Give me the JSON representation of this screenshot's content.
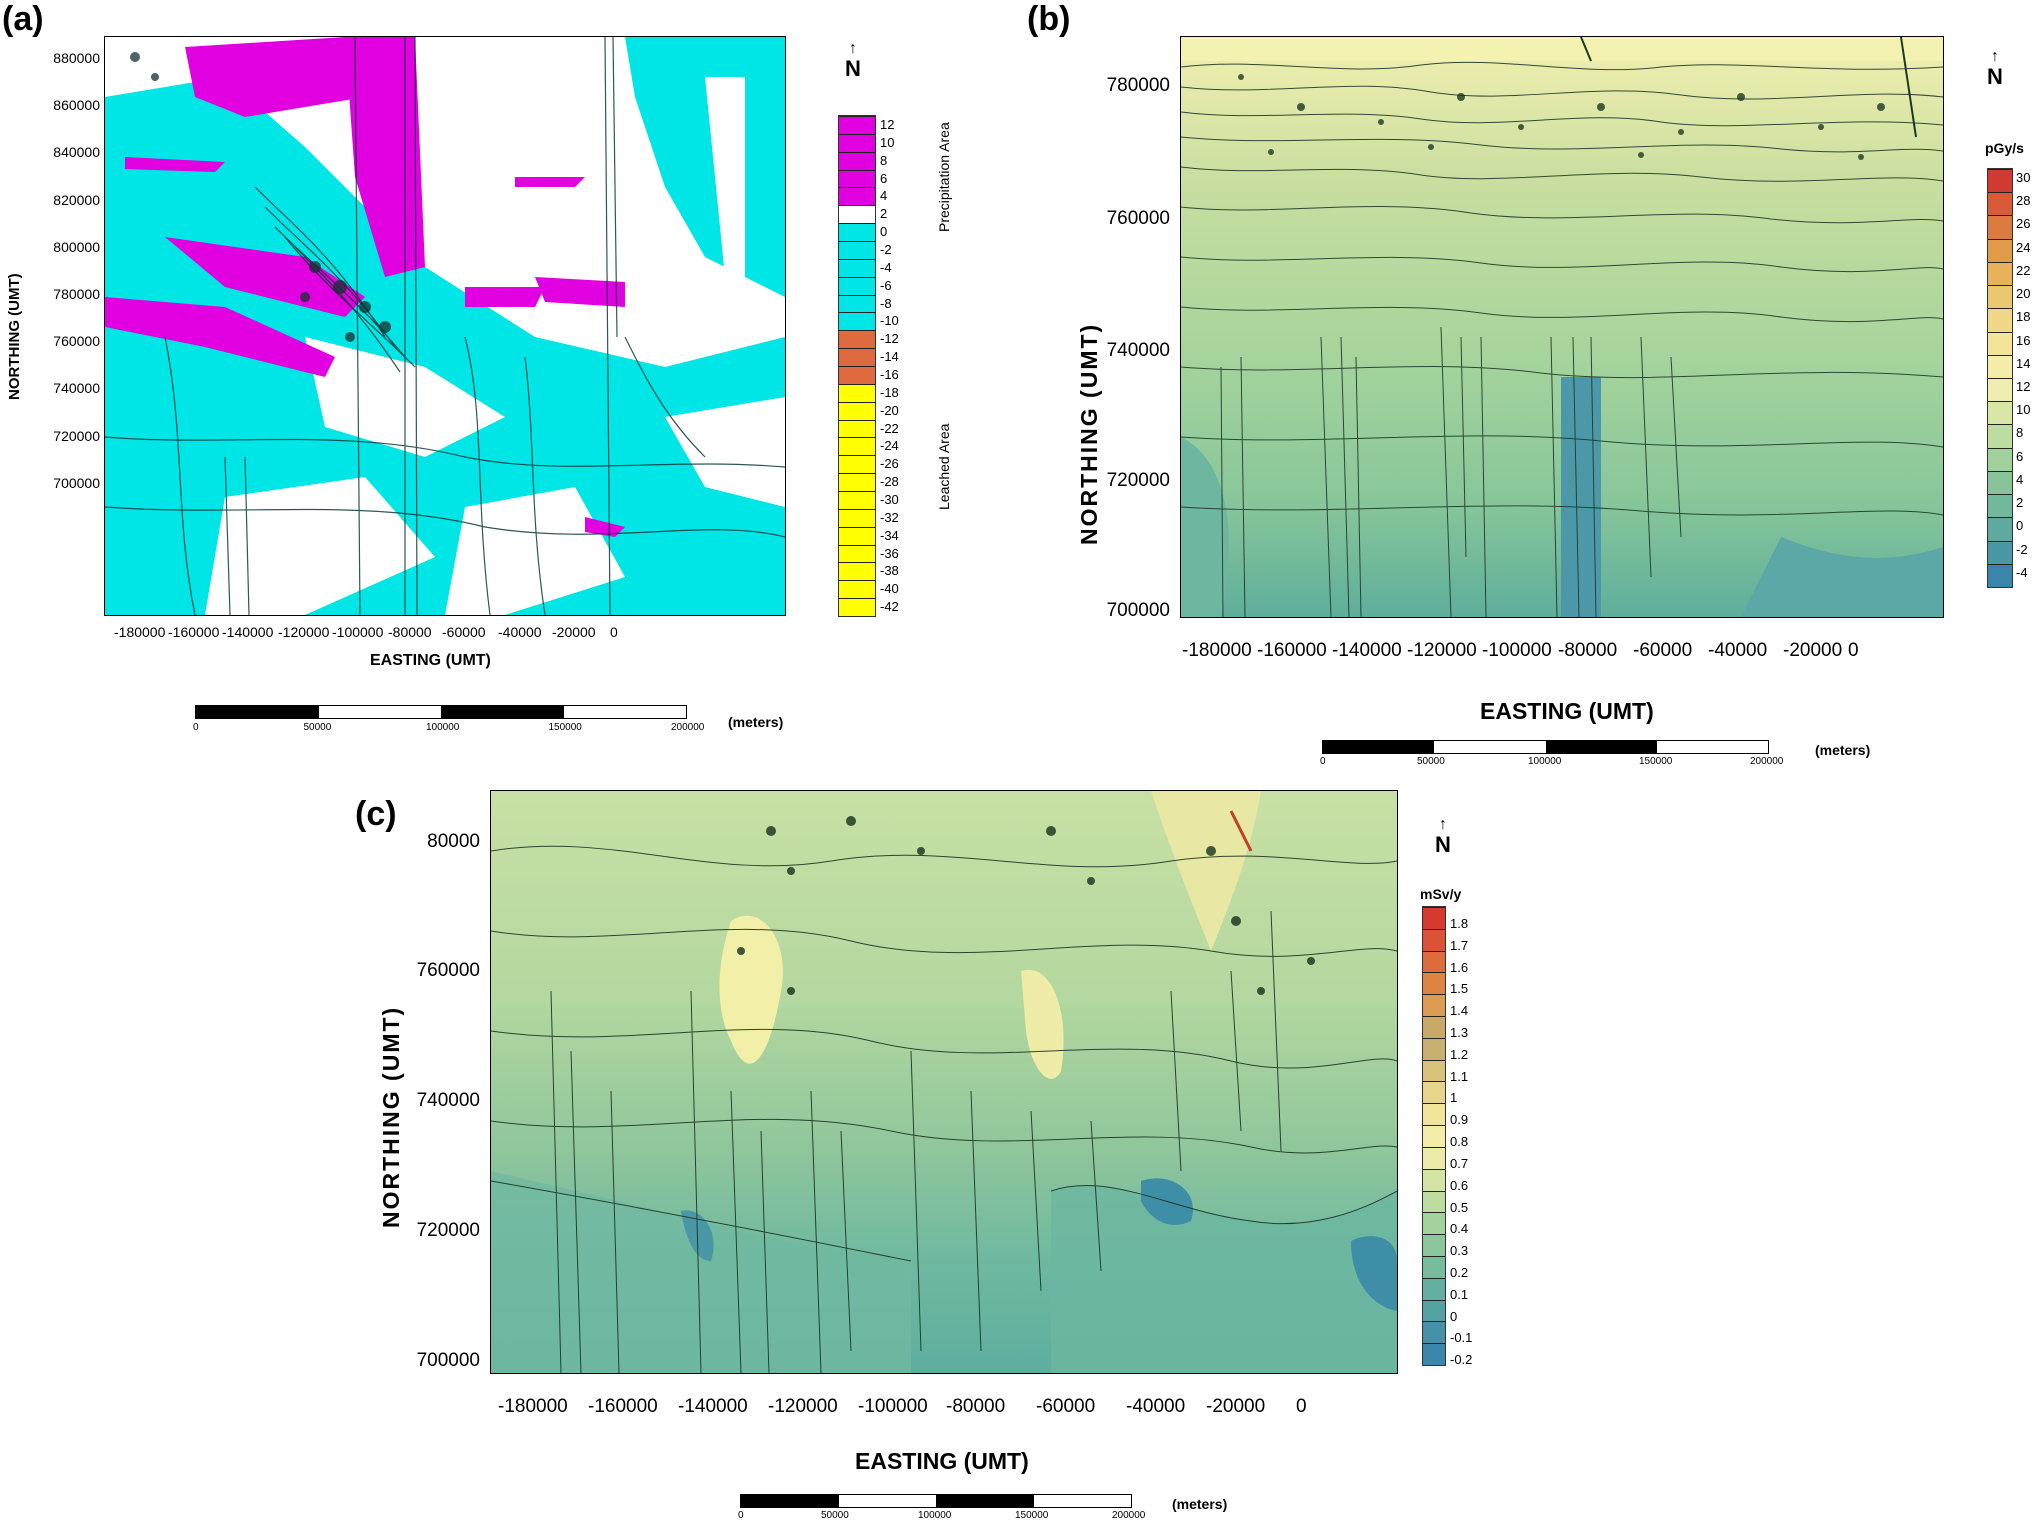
{
  "panels": [
    {
      "id": "a",
      "label": "(a)",
      "x_axis_title": "EASTING (UMT)",
      "y_axis_title": "NORTHING (UMT)",
      "x_ticks": [
        "-180000",
        "-160000",
        "-140000",
        "-120000",
        "-100000",
        "-80000",
        "-60000",
        "-40000",
        "-20000",
        "0"
      ],
      "y_ticks": [
        "880000",
        "860000",
        "840000",
        "820000",
        "800000",
        "780000",
        "760000",
        "740000",
        "720000",
        "700000"
      ],
      "north": "N",
      "legend": {
        "unit": "",
        "levels": [
          "12",
          "10",
          "8",
          "6",
          "4",
          "2",
          "0",
          "-2",
          "-4",
          "-6",
          "-8",
          "-10",
          "-12",
          "-14",
          "-16",
          "-18",
          "-20",
          "-22",
          "-24",
          "-26",
          "-28",
          "-30",
          "-32",
          "-34",
          "-36",
          "-38",
          "-40",
          "-42"
        ],
        "precipitation_label": "Precipitation Area",
        "leached_label": "Leached Area"
      },
      "scale": {
        "labels": [
          "0",
          "50000",
          "100000",
          "150000",
          "200000"
        ],
        "unit": "(meters)"
      }
    },
    {
      "id": "b",
      "label": "(b)",
      "x_axis_title": "EASTING (UMT)",
      "y_axis_title": "NORTHING (UMT)",
      "x_ticks": [
        "-180000",
        "-160000",
        "-140000",
        "-120000",
        "-100000",
        "-80000",
        "-60000",
        "-40000",
        "-20000",
        "0"
      ],
      "y_ticks": [
        "780000",
        "760000",
        "740000",
        "720000",
        "700000"
      ],
      "north": "N",
      "legend": {
        "unit": "pGy/s",
        "levels": [
          "30",
          "28",
          "26",
          "24",
          "22",
          "20",
          "18",
          "16",
          "14",
          "12",
          "10",
          "8",
          "6",
          "4",
          "2",
          "0",
          "-2",
          "-4"
        ]
      },
      "scale": {
        "labels": [
          "0",
          "50000",
          "100000",
          "150000",
          "200000"
        ],
        "unit": "(meters)"
      }
    },
    {
      "id": "c",
      "label": "(c)",
      "x_axis_title": "EASTING (UMT)",
      "y_axis_title": "NORTHING (UMT)",
      "x_ticks": [
        "-180000",
        "-160000",
        "-140000",
        "-120000",
        "-100000",
        "-80000",
        "-60000",
        "-40000",
        "-20000",
        "0"
      ],
      "y_ticks": [
        "80000",
        "760000",
        "740000",
        "720000",
        "700000"
      ],
      "north": "N",
      "legend": {
        "unit": "mSv/y",
        "levels": [
          "1.8",
          "1.7",
          "1.6",
          "1.5",
          "1.4",
          "1.3",
          "1.2",
          "1.1",
          "1",
          "0.9",
          "0.8",
          "0.7",
          "0.6",
          "0.5",
          "0.4",
          "0.3",
          "0.2",
          "0.1",
          "0",
          "-0.1",
          "-0.2"
        ]
      },
      "scale": {
        "labels": [
          "0",
          "50000",
          "100000",
          "150000",
          "200000"
        ],
        "unit": "(meters)"
      }
    }
  ],
  "colors": {
    "magenta": "#e000e0",
    "cyan": "#00e5e5",
    "orange_red": "#e06a40",
    "yellow": "#ffff00",
    "teal_low": "#3b8fa8",
    "green_mid": "#8cc49a",
    "yellow_high": "#f3f0a0",
    "red_high": "#d8402c"
  }
}
